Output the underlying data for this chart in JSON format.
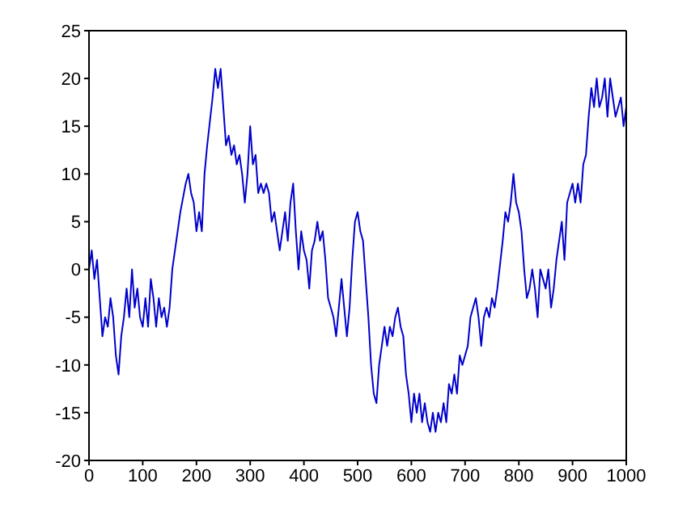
{
  "chart_data": {
    "type": "line",
    "xlim": [
      0,
      1000
    ],
    "xticks": [
      0,
      100,
      200,
      300,
      400,
      500,
      600,
      700,
      800,
      900,
      1000
    ],
    "ylim": [
      -20,
      25
    ],
    "yticks": [
      -20,
      -15,
      -10,
      -5,
      0,
      5,
      10,
      15,
      20,
      25
    ],
    "grid": false,
    "legend": false,
    "marker": "none",
    "line_style": "solid",
    "series": [
      {
        "color": "#0000cc",
        "x": [
          0,
          5,
          10,
          15,
          20,
          25,
          30,
          35,
          40,
          45,
          50,
          55,
          60,
          65,
          70,
          75,
          80,
          85,
          90,
          95,
          100,
          105,
          110,
          115,
          120,
          125,
          130,
          135,
          140,
          145,
          150,
          155,
          160,
          170,
          180,
          185,
          190,
          195,
          200,
          205,
          210,
          215,
          220,
          230,
          235,
          240,
          245,
          250,
          255,
          260,
          265,
          270,
          275,
          280,
          285,
          290,
          295,
          300,
          305,
          310,
          315,
          320,
          325,
          330,
          335,
          340,
          345,
          350,
          355,
          360,
          365,
          370,
          375,
          380,
          385,
          390,
          395,
          400,
          405,
          410,
          415,
          420,
          425,
          430,
          435,
          440,
          445,
          450,
          455,
          460,
          465,
          470,
          475,
          480,
          485,
          490,
          495,
          500,
          505,
          510,
          515,
          520,
          525,
          530,
          535,
          540,
          545,
          550,
          555,
          560,
          565,
          570,
          575,
          580,
          585,
          590,
          595,
          600,
          605,
          610,
          615,
          620,
          625,
          630,
          635,
          640,
          645,
          650,
          655,
          660,
          665,
          670,
          675,
          680,
          685,
          690,
          695,
          700,
          705,
          710,
          715,
          720,
          725,
          730,
          735,
          740,
          745,
          750,
          755,
          760,
          770,
          775,
          780,
          785,
          790,
          795,
          800,
          805,
          810,
          815,
          820,
          825,
          830,
          835,
          840,
          845,
          850,
          855,
          860,
          865,
          870,
          875,
          880,
          885,
          890,
          895,
          900,
          905,
          910,
          915,
          920,
          925,
          930,
          935,
          940,
          945,
          950,
          955,
          960,
          965,
          970,
          975,
          980,
          985,
          990,
          995,
          1000
        ],
        "values": [
          0,
          2,
          -1,
          1,
          -3,
          -7,
          -5,
          -6,
          -3,
          -5,
          -9,
          -11,
          -7,
          -5,
          -2,
          -5,
          0,
          -4,
          -2,
          -5,
          -6,
          -3,
          -6,
          -1,
          -3,
          -6,
          -3,
          -5,
          -4,
          -6,
          -4,
          0,
          2,
          6,
          9,
          10,
          8,
          7,
          4,
          6,
          4,
          10,
          13,
          18,
          21,
          19,
          21,
          17,
          13,
          14,
          12,
          13,
          11,
          12,
          10,
          7,
          10,
          15,
          11,
          12,
          8,
          9,
          8,
          9,
          8,
          5,
          6,
          4,
          2,
          4,
          6,
          3,
          7,
          9,
          4,
          0,
          4,
          2,
          1,
          -2,
          2,
          3,
          5,
          3,
          4,
          1,
          -3,
          -4,
          -5,
          -7,
          -4,
          -1,
          -4,
          -7,
          -4,
          1,
          5,
          6,
          4,
          3,
          -1,
          -5,
          -10,
          -13,
          -14,
          -10,
          -8,
          -6,
          -8,
          -6,
          -7,
          -5,
          -4,
          -6,
          -7,
          -11,
          -13,
          -16,
          -13,
          -15,
          -13,
          -16,
          -14,
          -16,
          -17,
          -15,
          -17,
          -15,
          -16,
          -14,
          -16,
          -12,
          -13,
          -11,
          -13,
          -9,
          -10,
          -9,
          -8,
          -5,
          -4,
          -3,
          -5,
          -8,
          -5,
          -4,
          -5,
          -3,
          -4,
          -2,
          3,
          6,
          5,
          7,
          10,
          7,
          6,
          4,
          0,
          -3,
          -2,
          0,
          -2,
          -5,
          0,
          -1,
          -2,
          0,
          -4,
          -2,
          1,
          3,
          5,
          1,
          7,
          8,
          9,
          7,
          9,
          7,
          11,
          12,
          16,
          19,
          17,
          20,
          17,
          18,
          20,
          16,
          20,
          18,
          16,
          17,
          18,
          15,
          17
        ]
      }
    ]
  }
}
